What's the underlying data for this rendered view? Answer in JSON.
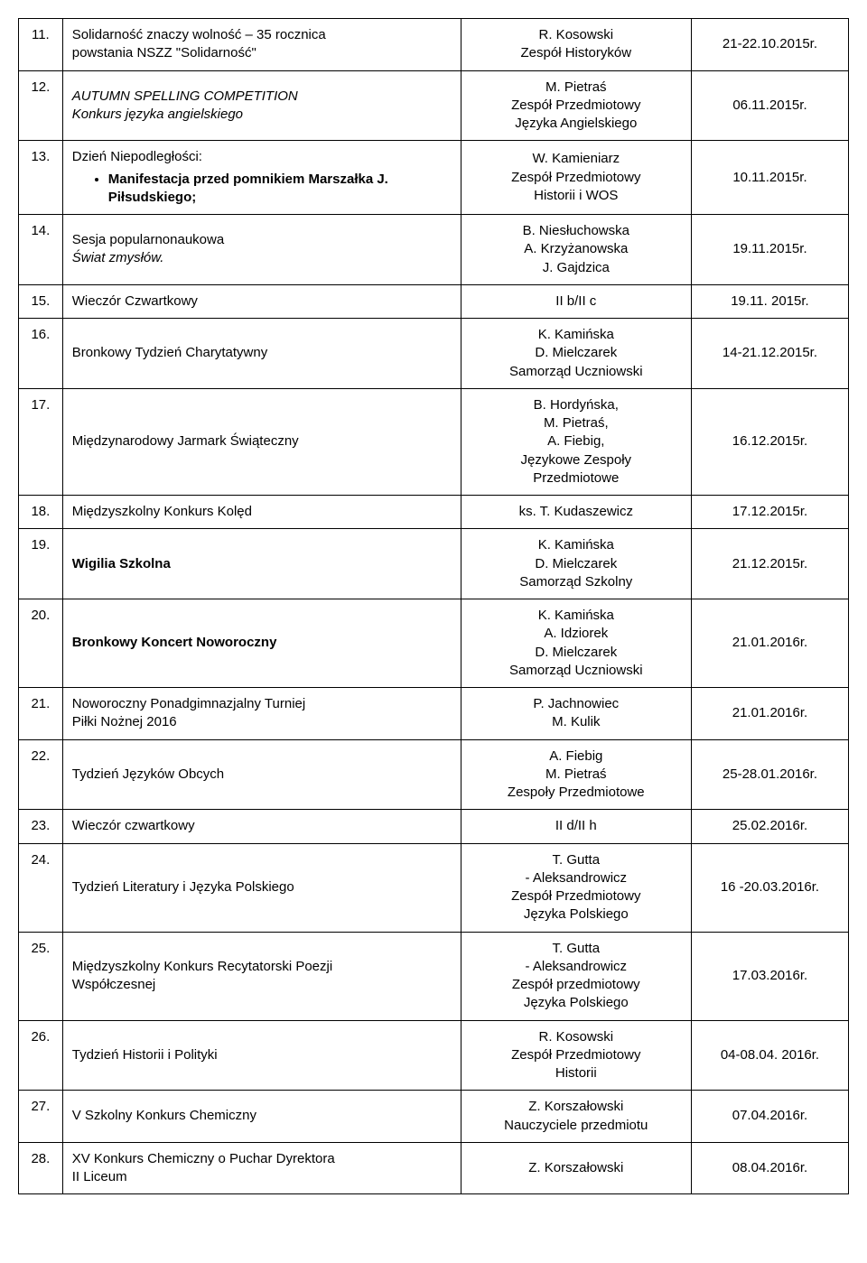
{
  "rows": [
    {
      "num": "11.",
      "desc_lines": [
        {
          "text": "Solidarność znaczy wolność – 35 rocznica"
        },
        {
          "text": "powstania NSZZ \"Solidarność\""
        }
      ],
      "person_lines": [
        "R. Kosowski",
        "Zespół Historyków"
      ],
      "date": "21-22.10.2015r."
    },
    {
      "num": "12.",
      "desc_lines": [
        {
          "text": "AUTUMN SPELLING COMPETITION",
          "italic": true
        },
        {
          "text": "Konkurs języka angielskiego",
          "italic": true
        }
      ],
      "person_lines": [
        "M. Pietraś",
        "Zespół Przedmiotowy",
        "Języka Angielskiego"
      ],
      "date": "06.11.2015r."
    },
    {
      "num": "13.",
      "desc_lines": [
        {
          "text": "Dzień Niepodległości:"
        },
        {
          "text": "Manifestacja przed pomnikiem Marszałka J. Piłsudskiego;",
          "bullet": true,
          "bold": true
        }
      ],
      "person_lines": [
        "W. Kamieniarz",
        "Zespół Przedmiotowy",
        "Historii i WOS"
      ],
      "date": "10.11.2015r."
    },
    {
      "num": "14.",
      "desc_lines": [
        {
          "text": "Sesja popularnonaukowa"
        },
        {
          "text": "Świat zmysłów.",
          "italic": true
        }
      ],
      "person_lines": [
        "B. Niesłuchowska",
        "A. Krzyżanowska",
        "J. Gajdzica"
      ],
      "date": "19.11.2015r."
    },
    {
      "num": "15.",
      "desc_lines": [
        {
          "text": "Wieczór Czwartkowy"
        }
      ],
      "person_lines": [
        "II b/II c"
      ],
      "date": "19.11. 2015r."
    },
    {
      "num": "16.",
      "desc_lines": [
        {
          "text": "Bronkowy Tydzień Charytatywny"
        }
      ],
      "person_lines": [
        "K. Kamińska",
        "D. Mielczarek",
        "Samorząd Uczniowski"
      ],
      "date": "14-21.12.2015r."
    },
    {
      "num": "17.",
      "desc_lines": [
        {
          "text": "Międzynarodowy Jarmark Świąteczny"
        }
      ],
      "person_lines": [
        "B. Hordyńska,",
        "M. Pietraś,",
        "A. Fiebig,",
        "Językowe Zespoły",
        "Przedmiotowe"
      ],
      "date": "16.12.2015r."
    },
    {
      "num": "18.",
      "desc_lines": [
        {
          "text": "Międzyszkolny Konkurs Kolęd"
        }
      ],
      "person_lines": [
        "ks. T. Kudaszewicz"
      ],
      "date": "17.12.2015r."
    },
    {
      "num": "19.",
      "desc_lines": [
        {
          "text": "Wigilia Szkolna",
          "bold": true
        }
      ],
      "person_lines": [
        "K. Kamińska",
        "D. Mielczarek",
        "Samorząd Szkolny"
      ],
      "date": "21.12.2015r."
    },
    {
      "num": "20.",
      "desc_lines": [
        {
          "text": "Bronkowy Koncert Noworoczny",
          "bold": true
        }
      ],
      "person_lines": [
        "K. Kamińska",
        "A. Idziorek",
        "D. Mielczarek",
        "Samorząd Uczniowski"
      ],
      "date": "21.01.2016r."
    },
    {
      "num": "21.",
      "desc_lines": [
        {
          "text": "Noworoczny Ponadgimnazjalny  Turniej"
        },
        {
          "text": "Piłki Nożnej 2016"
        }
      ],
      "person_lines": [
        "P. Jachnowiec",
        "M. Kulik"
      ],
      "date": "21.01.2016r."
    },
    {
      "num": "22.",
      "desc_lines": [
        {
          "text": "Tydzień Języków Obcych"
        }
      ],
      "person_lines": [
        "A. Fiebig",
        "M. Pietraś",
        "Zespoły Przedmiotowe"
      ],
      "date": "25-28.01.2016r."
    },
    {
      "num": "23.",
      "desc_lines": [
        {
          "text": "Wieczór czwartkowy"
        }
      ],
      "person_lines": [
        "II d/II h"
      ],
      "date": "25.02.2016r."
    },
    {
      "num": "24.",
      "desc_lines": [
        {
          "text": "Tydzień Literatury i Języka Polskiego"
        }
      ],
      "person_lines": [
        "T. Gutta",
        "- Aleksandrowicz",
        "Zespół Przedmiotowy",
        "Języka Polskiego"
      ],
      "date": "16 -20.03.2016r."
    },
    {
      "num": "25.",
      "desc_lines": [
        {
          "text": "Międzyszkolny Konkurs Recytatorski Poezji"
        },
        {
          "text": "Współczesnej"
        }
      ],
      "person_lines": [
        "T. Gutta",
        "- Aleksandrowicz",
        "Zespół przedmiotowy",
        "Języka Polskiego"
      ],
      "date": "17.03.2016r."
    },
    {
      "num": "26.",
      "desc_lines": [
        {
          "text": "Tydzień Historii i Polityki"
        }
      ],
      "person_lines": [
        "R. Kosowski",
        "Zespół Przedmiotowy",
        "Historii"
      ],
      "date": "04-08.04. 2016r."
    },
    {
      "num": "27.",
      "desc_lines": [
        {
          "text": "V Szkolny Konkurs Chemiczny"
        }
      ],
      "person_lines": [
        "Z. Korszałowski",
        "Nauczyciele przedmiotu"
      ],
      "date": "07.04.2016r."
    },
    {
      "num": "28.",
      "desc_lines": [
        {
          "text": "XV Konkurs Chemiczny o Puchar Dyrektora"
        },
        {
          "text": "II Liceum"
        }
      ],
      "person_lines": [
        "Z. Korszałowski"
      ],
      "date": "08.04.2016r."
    }
  ]
}
